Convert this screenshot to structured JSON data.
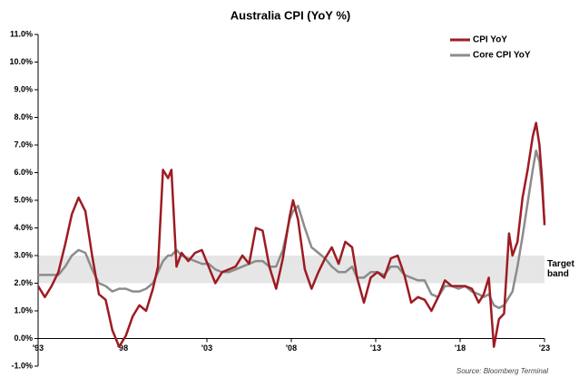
{
  "chart_data": {
    "type": "line",
    "title": "Australia CPI (YoY %)",
    "x": [
      1993.0,
      1993.4,
      1993.8,
      1994.2,
      1994.6,
      1995.0,
      1995.4,
      1995.8,
      1996.2,
      1996.6,
      1997.0,
      1997.4,
      1997.8,
      1998.2,
      1998.6,
      1999.0,
      1999.4,
      1999.8,
      2000.1,
      2000.4,
      2000.7,
      2000.9,
      2001.2,
      2001.5,
      2001.9,
      2002.3,
      2002.7,
      2003.1,
      2003.5,
      2003.9,
      2004.3,
      2004.7,
      2005.1,
      2005.5,
      2005.9,
      2006.3,
      2006.7,
      2007.1,
      2007.5,
      2007.9,
      2008.1,
      2008.4,
      2008.8,
      2009.2,
      2009.6,
      2010.0,
      2010.4,
      2010.8,
      2011.2,
      2011.6,
      2011.9,
      2012.3,
      2012.7,
      2013.1,
      2013.5,
      2013.9,
      2014.3,
      2014.7,
      2015.1,
      2015.5,
      2015.9,
      2016.3,
      2016.7,
      2017.1,
      2017.5,
      2017.9,
      2018.3,
      2018.7,
      2019.1,
      2019.4,
      2019.7,
      2020.0,
      2020.3,
      2020.6,
      2020.9,
      2021.1,
      2021.4,
      2021.7,
      2022.0,
      2022.3,
      2022.5,
      2022.7,
      2022.85,
      2023.0
    ],
    "series": [
      {
        "name": "CPI YoY",
        "color": "#9e1b22",
        "values": [
          1.9,
          1.5,
          1.9,
          2.4,
          3.4,
          4.5,
          5.1,
          4.6,
          3.0,
          1.6,
          1.4,
          0.3,
          -0.3,
          0.1,
          0.8,
          1.2,
          1.0,
          1.8,
          2.6,
          6.1,
          5.8,
          6.1,
          2.6,
          3.1,
          2.8,
          3.1,
          3.2,
          2.6,
          2.0,
          2.4,
          2.5,
          2.6,
          3.0,
          2.7,
          4.0,
          3.9,
          2.6,
          1.8,
          2.9,
          4.4,
          5.0,
          4.3,
          2.5,
          1.8,
          2.4,
          2.9,
          3.3,
          2.7,
          3.5,
          3.3,
          2.2,
          1.3,
          2.2,
          2.4,
          2.2,
          2.9,
          3.0,
          2.3,
          1.3,
          1.5,
          1.4,
          1.0,
          1.5,
          2.1,
          1.9,
          1.9,
          1.9,
          1.8,
          1.3,
          1.6,
          2.2,
          -0.3,
          0.7,
          0.9,
          3.8,
          3.0,
          3.5,
          5.1,
          6.1,
          7.3,
          7.8,
          7.0,
          5.8,
          4.1
        ]
      },
      {
        "name": "Core CPI YoY",
        "color": "#8c8c8c",
        "values": [
          2.3,
          2.3,
          2.3,
          2.3,
          2.6,
          3.0,
          3.2,
          3.1,
          2.5,
          2.0,
          1.9,
          1.7,
          1.8,
          1.8,
          1.7,
          1.7,
          1.8,
          2.0,
          2.4,
          2.8,
          3.0,
          3.0,
          3.2,
          3.0,
          2.9,
          2.8,
          2.7,
          2.7,
          2.5,
          2.4,
          2.4,
          2.5,
          2.6,
          2.7,
          2.8,
          2.8,
          2.6,
          2.6,
          3.2,
          4.3,
          4.6,
          4.8,
          4.0,
          3.3,
          3.1,
          2.9,
          2.6,
          2.4,
          2.4,
          2.6,
          2.2,
          2.2,
          2.4,
          2.4,
          2.3,
          2.6,
          2.6,
          2.3,
          2.2,
          2.1,
          2.1,
          1.6,
          1.5,
          1.9,
          1.9,
          1.8,
          1.9,
          1.7,
          1.6,
          1.5,
          1.6,
          1.2,
          1.1,
          1.2,
          1.5,
          1.7,
          2.6,
          3.7,
          4.9,
          6.1,
          6.8,
          6.4,
          5.5,
          4.2
        ]
      }
    ],
    "xlim": [
      1993,
      2023
    ],
    "xticks": [
      {
        "value": 1993,
        "label": "'93"
      },
      {
        "value": 1998,
        "label": "'98"
      },
      {
        "value": 2003,
        "label": "'03"
      },
      {
        "value": 2008,
        "label": "'08"
      },
      {
        "value": 2013,
        "label": "'13"
      },
      {
        "value": 2018,
        "label": "'18"
      },
      {
        "value": 2023,
        "label": "'23"
      }
    ],
    "ylim": [
      -1,
      11
    ],
    "yticks": [
      {
        "value": -1,
        "label": "-1.0%"
      },
      {
        "value": 0,
        "label": "0.0%"
      },
      {
        "value": 1,
        "label": "1.0%"
      },
      {
        "value": 2,
        "label": "2.0%"
      },
      {
        "value": 3,
        "label": "3.0%"
      },
      {
        "value": 4,
        "label": "4.0%"
      },
      {
        "value": 5,
        "label": "5.0%"
      },
      {
        "value": 6,
        "label": "6.0%"
      },
      {
        "value": 7,
        "label": "7.0%"
      },
      {
        "value": 8,
        "label": "8.0%"
      },
      {
        "value": 9,
        "label": "9.0%"
      },
      {
        "value": 10,
        "label": "10.0%"
      },
      {
        "value": 11,
        "label": "11.0%"
      }
    ],
    "band": {
      "range": [
        2,
        3
      ],
      "label": "Target band",
      "color": "#e6e6e6"
    },
    "legend": "top-right",
    "source": "Source: Bloomberg Terminal"
  }
}
